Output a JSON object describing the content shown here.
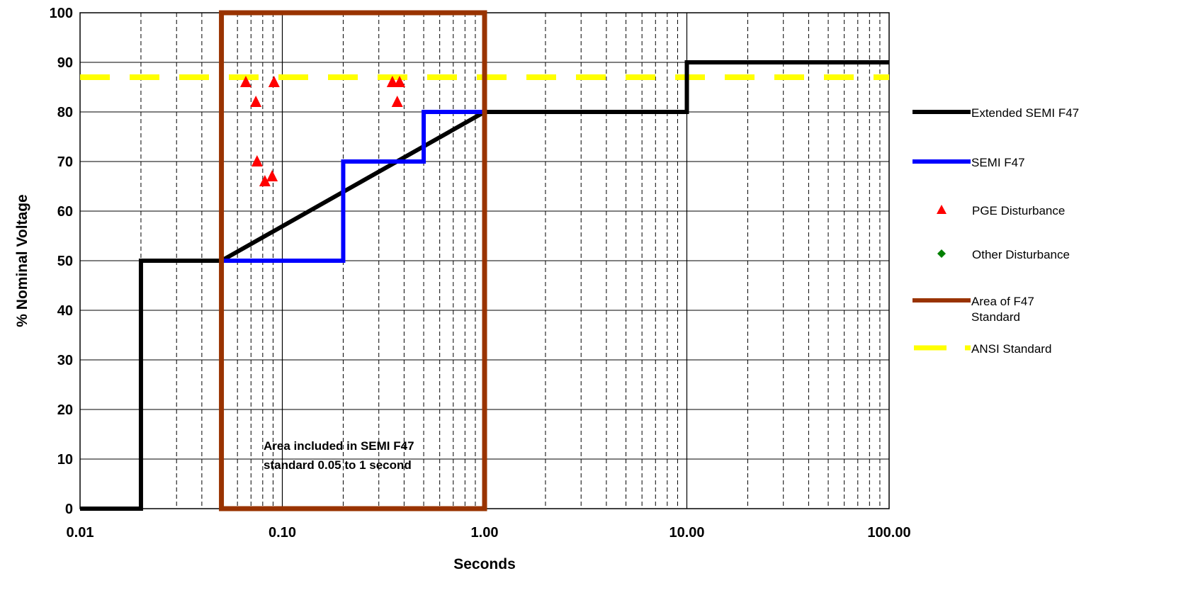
{
  "chart_data": {
    "type": "line",
    "x_scale": "log",
    "xlabel": "Seconds",
    "ylabel": "% Nominal Voltage",
    "xlim": [
      0.01,
      100
    ],
    "ylim": [
      0,
      100
    ],
    "grid": true,
    "legend_position": "right",
    "x_tick_labels": [
      "0.01",
      "0.10",
      "1.00",
      "10.00",
      "100.00"
    ],
    "y_tick_labels": [
      "0",
      "10",
      "20",
      "30",
      "40",
      "50",
      "60",
      "70",
      "80",
      "90",
      "100"
    ],
    "colors": {
      "extended": "#000000",
      "semi": "#0000ff",
      "pge": "#ff0000",
      "other": "#008000",
      "area": "#993300",
      "ansi": "#ffff00"
    },
    "series": [
      {
        "name": "Extended SEMI F47",
        "kind": "step-line",
        "x": [
          0.01,
          0.02,
          0.02,
          0.05,
          0.05,
          1.0,
          1.0,
          10,
          10,
          100
        ],
        "y": [
          0,
          0,
          50,
          50,
          50,
          80,
          80,
          80,
          90,
          90
        ]
      },
      {
        "name": "SEMI F47",
        "kind": "step-line",
        "x": [
          0.05,
          0.2,
          0.2,
          0.5,
          0.5,
          1.0
        ],
        "y": [
          50,
          50,
          70,
          70,
          80,
          80
        ]
      },
      {
        "name": "PGE Disturbance",
        "kind": "scatter",
        "x": [
          0.066,
          0.074,
          0.091,
          0.075,
          0.082,
          0.089,
          0.35,
          0.38,
          0.37
        ],
        "y": [
          86,
          82,
          86,
          70,
          66,
          67,
          86,
          86,
          82
        ]
      },
      {
        "name": "Other Disturbance",
        "kind": "scatter",
        "x": [],
        "y": []
      },
      {
        "name": "Area of F47 Standard",
        "kind": "rectangle",
        "x": [
          0.05,
          1.0
        ],
        "y": [
          0,
          100
        ]
      },
      {
        "name": "ANSI Standard",
        "kind": "dashed-hline",
        "y": 87
      }
    ],
    "annotation": {
      "line1": "Area included in SEMI F47",
      "line2": "standard 0.05 to 1 second"
    },
    "legend": [
      {
        "label": [
          "Extended SEMI F47"
        ],
        "key": "extended",
        "symbol": "line"
      },
      {
        "label": [
          "SEMI F47"
        ],
        "key": "semi",
        "symbol": "line"
      },
      {
        "label": [
          "PGE Disturbance"
        ],
        "key": "pge",
        "symbol": "triangle"
      },
      {
        "label": [
          "Other Disturbance"
        ],
        "key": "other",
        "symbol": "diamond"
      },
      {
        "label": [
          "Area of F47",
          "Standard"
        ],
        "key": "area",
        "symbol": "line"
      },
      {
        "label": [
          "ANSI Standard"
        ],
        "key": "ansi",
        "symbol": "dash"
      }
    ]
  }
}
